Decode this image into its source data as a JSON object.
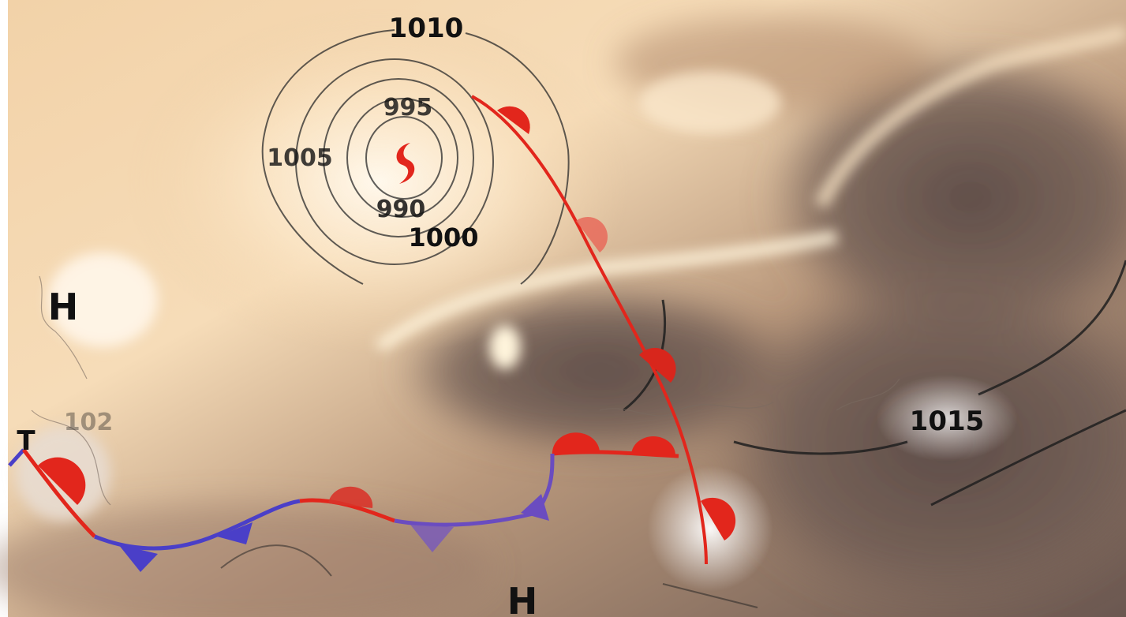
{
  "map": {
    "isobar_labels": {
      "i1010": "1010",
      "i1005": "1005",
      "i995": "995",
      "i990": "990",
      "i1000": "1000",
      "i1015": "1015",
      "i102": "102"
    },
    "pressure_centers": {
      "high_left": "H",
      "high_bottom": "H",
      "low_left": "T"
    },
    "symbols": {
      "cyclone": "cyclone-symbol"
    },
    "colors": {
      "warm_front": "#e2261c",
      "cold_front": "#4a3fc8",
      "isobar": "#2a2a2a"
    }
  }
}
